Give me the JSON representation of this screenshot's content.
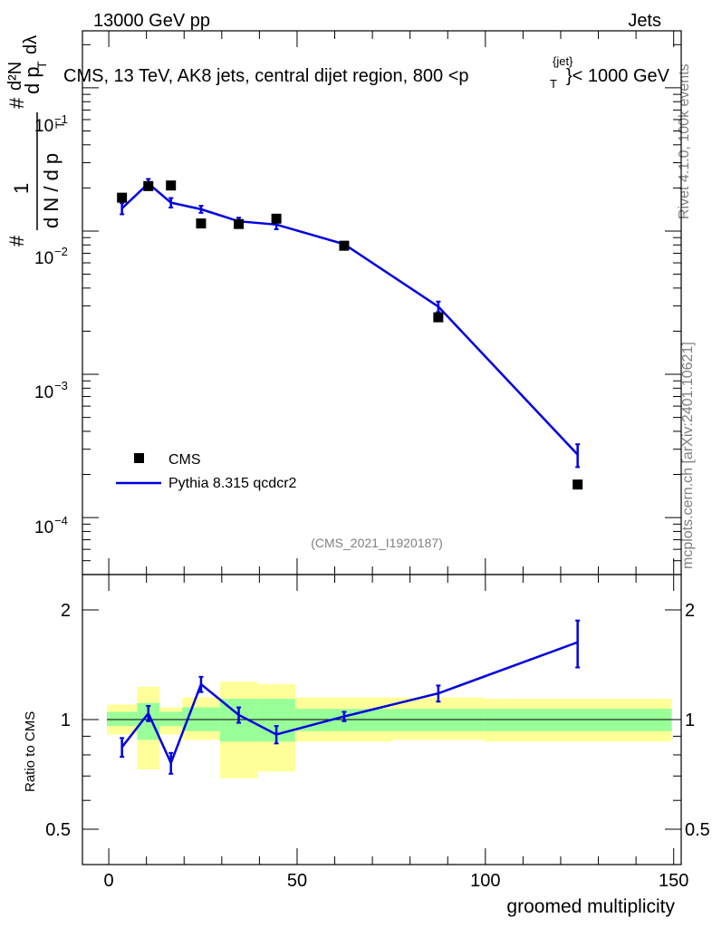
{
  "header": {
    "left": "13000 GeV pp",
    "right": "Jets"
  },
  "title_parts": {
    "main": "CMS, 13 TeV, AK8 jets, central dijet region, 800 <p",
    "sup": "{jet}",
    "sub": "T",
    "tail": "}< 1000 GeV"
  },
  "ylabel_parts": {
    "hash": "#",
    "one": "1",
    "dn": "d N / d p",
    "t": "T",
    "hash2": "#",
    "dpt": "d p",
    "t2": "T",
    "dN": "d²N",
    "dlam": "dλ"
  },
  "side_labels": {
    "rivet": "Rivet 4.1.0,  100k events",
    "mcplots": "mcplots.cern.ch [arXiv:2401.10621]"
  },
  "watermark": "(CMS_2021_I1920187)",
  "legend": {
    "data_label": "CMS",
    "mc_label": "Pythia 8.315 qcdcr2"
  },
  "colors": {
    "data": "#000000",
    "mc": "#0000e0",
    "band_inner": "#99ff99",
    "band_outer": "#ffff99"
  },
  "chart_data": [
    {
      "type": "scatter",
      "panel": "main",
      "yscale": "log",
      "xlim": [
        -7,
        152
      ],
      "ylim": [
        4e-05,
        0.25
      ],
      "ytick_labels": [
        "10^{-1}",
        "10^{-2}",
        "10^{-3}",
        "10^{-4}"
      ],
      "series": [
        {
          "name": "CMS",
          "style": "markers",
          "x": [
            3.5,
            10.5,
            16.5,
            24.5,
            34.5,
            44.5,
            62.5,
            87.5,
            124.5
          ],
          "y": [
            0.0171,
            0.0206,
            0.0208,
            0.0113,
            0.0112,
            0.0122,
            0.0079,
            0.0025,
            0.00017
          ]
        },
        {
          "name": "Pythia 8.315 qcdcr2",
          "style": "line",
          "x": [
            3.5,
            10.5,
            16.5,
            24.5,
            34.5,
            44.5,
            62.5,
            87.5,
            124.5
          ],
          "y": [
            0.0144,
            0.0215,
            0.0158,
            0.0142,
            0.0117,
            0.0111,
            0.0081,
            0.00297,
            0.000275
          ],
          "y_err": [
            0.0013,
            0.0016,
            0.0012,
            0.0008,
            0.0007,
            0.0008,
            0.0003,
            0.00025,
            5e-05
          ]
        }
      ]
    },
    {
      "type": "line",
      "panel": "ratio",
      "xlabel": "groomed multiplicity",
      "ylabel": "Ratio to CMS",
      "yscale": "log",
      "xlim": [
        -7,
        152
      ],
      "ylim": [
        0.4,
        2.5
      ],
      "xtick_labels": [
        "0",
        "50",
        "100",
        "150"
      ],
      "xticks": [
        0,
        50,
        100,
        150
      ],
      "ytick_labels": [
        "0.5",
        "1",
        "2"
      ],
      "yticks": [
        0.5,
        1,
        2
      ],
      "bands": [
        {
          "xlo": -0.5,
          "xhi": 7.5,
          "inner": [
            0.96,
            1.05
          ],
          "outer": [
            0.91,
            1.1
          ]
        },
        {
          "xlo": 7.5,
          "xhi": 13.5,
          "inner": [
            0.88,
            1.11
          ],
          "outer": [
            0.73,
            1.23
          ]
        },
        {
          "xlo": 13.5,
          "xhi": 19.5,
          "inner": [
            0.96,
            1.05
          ],
          "outer": [
            0.91,
            1.08
          ]
        },
        {
          "xlo": 19.5,
          "xhi": 29.5,
          "inner": [
            0.93,
            1.08
          ],
          "outer": [
            0.88,
            1.15
          ]
        },
        {
          "xlo": 29.5,
          "xhi": 39.5,
          "inner": [
            0.87,
            1.14
          ],
          "outer": [
            0.69,
            1.27
          ]
        },
        {
          "xlo": 39.5,
          "xhi": 49.5,
          "inner": [
            0.87,
            1.14
          ],
          "outer": [
            0.72,
            1.25
          ]
        },
        {
          "xlo": 49.5,
          "xhi": 75.5,
          "inner": [
            0.93,
            1.07
          ],
          "outer": [
            0.87,
            1.15
          ]
        },
        {
          "xlo": 75.5,
          "xhi": 99.5,
          "inner": [
            0.93,
            1.07
          ],
          "outer": [
            0.88,
            1.15
          ]
        },
        {
          "xlo": 99.5,
          "xhi": 149.5,
          "inner": [
            0.93,
            1.07
          ],
          "outer": [
            0.87,
            1.14
          ]
        }
      ],
      "series": [
        {
          "name": "Pythia 8.315 qcdcr2",
          "x": [
            3.5,
            10.5,
            16.5,
            24.5,
            34.5,
            44.5,
            62.5,
            87.5,
            124.5
          ],
          "y": [
            0.84,
            1.04,
            0.76,
            1.25,
            1.03,
            0.91,
            1.02,
            1.18,
            1.63
          ],
          "y_err": [
            0.05,
            0.05,
            0.05,
            0.06,
            0.05,
            0.05,
            0.03,
            0.06,
            0.24
          ]
        }
      ]
    }
  ]
}
